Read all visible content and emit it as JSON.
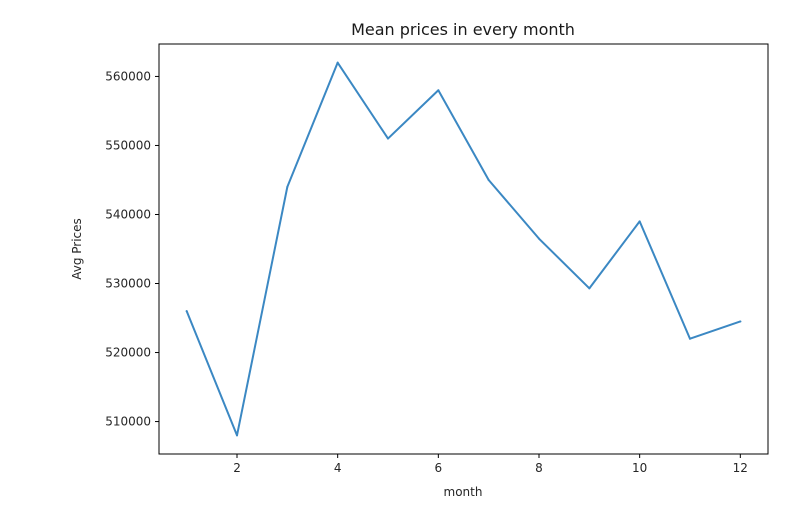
{
  "chart_data": {
    "type": "line",
    "title": "Mean prices in every month",
    "xlabel": "month",
    "ylabel": "Avg Prices",
    "x": [
      1,
      2,
      3,
      4,
      5,
      6,
      7,
      8,
      9,
      10,
      11,
      12
    ],
    "series": [
      {
        "values": [
          526000,
          508000,
          544000,
          562000,
          551000,
          558000,
          545000,
          536500,
          529300,
          539000,
          522000,
          524500
        ]
      }
    ],
    "xticks": [
      "2",
      "4",
      "6",
      "8",
      "10",
      "12"
    ],
    "yticks": [
      "510000",
      "520000",
      "530000",
      "540000",
      "550000",
      "560000"
    ],
    "xlim": [
      0.45,
      12.55
    ],
    "ylim": [
      505300,
      564700
    ],
    "grid": false,
    "line_color": "#3b88c3"
  }
}
